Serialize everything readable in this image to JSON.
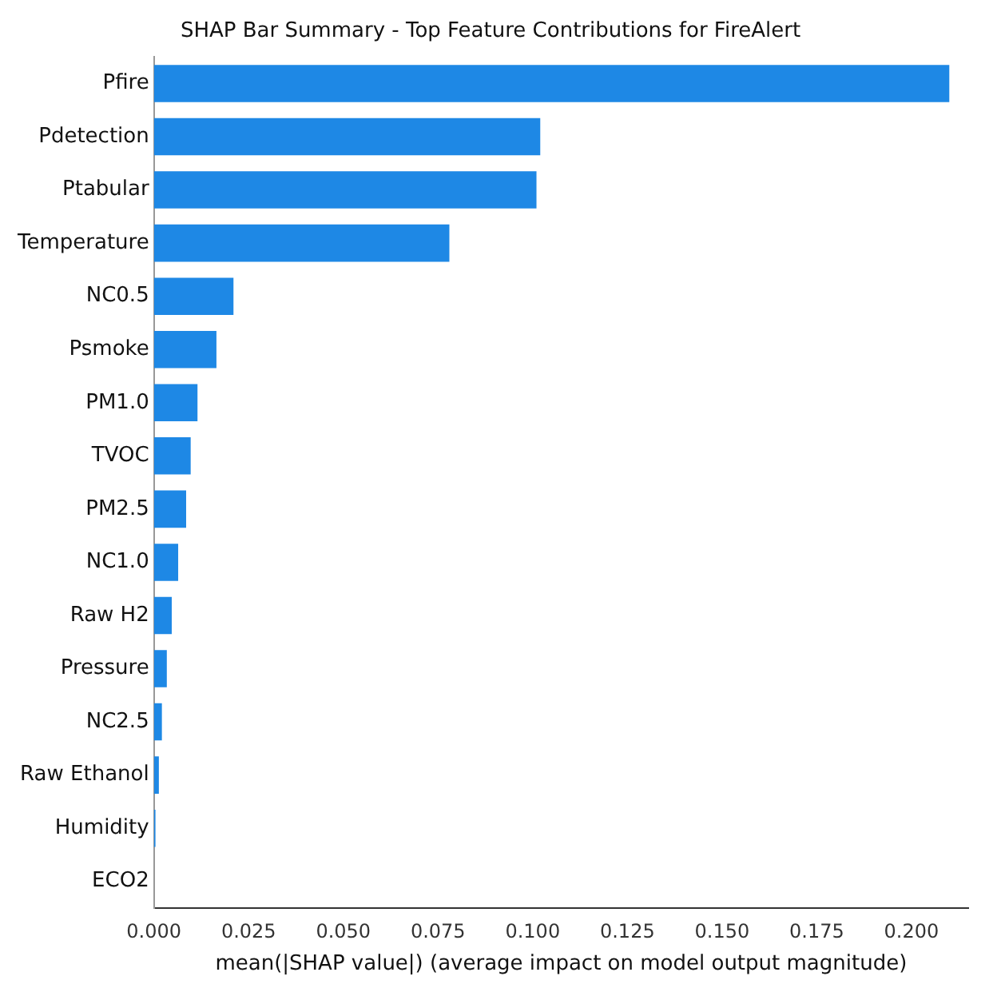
{
  "chart_data": {
    "type": "bar",
    "orientation": "horizontal",
    "title": "SHAP Bar Summary - Top Feature Contributions for FireAlert",
    "xlabel": "mean(|SHAP value|) (average impact on model output magnitude)",
    "categories": [
      "Pfire",
      "Pdetection",
      "Ptabular",
      "Temperature",
      "NC0.5",
      "Psmoke",
      "PM1.0",
      "TVOC",
      "PM2.5",
      "NC1.0",
      "Raw H2",
      "Pressure",
      "NC2.5",
      "Raw Ethanol",
      "Humidity",
      "ECO2"
    ],
    "values": [
      0.21,
      0.102,
      0.101,
      0.078,
      0.021,
      0.0165,
      0.0115,
      0.0097,
      0.0085,
      0.0064,
      0.0047,
      0.0034,
      0.0021,
      0.0013,
      0.0004,
      0
    ],
    "color": "#1e88e5",
    "xlim": [
      0,
      0.215
    ],
    "xticks": [
      {
        "value": 0,
        "label": "0.000"
      },
      {
        "value": 0.025,
        "label": "0.025"
      },
      {
        "value": 0.05,
        "label": "0.050"
      },
      {
        "value": 0.075,
        "label": "0.075"
      },
      {
        "value": 0.1,
        "label": "0.100"
      },
      {
        "value": 0.125,
        "label": "0.125"
      },
      {
        "value": 0.15,
        "label": "0.150"
      },
      {
        "value": 0.175,
        "label": "0.175"
      },
      {
        "value": 0.2,
        "label": "0.200"
      }
    ],
    "grid": false,
    "legend": false
  }
}
